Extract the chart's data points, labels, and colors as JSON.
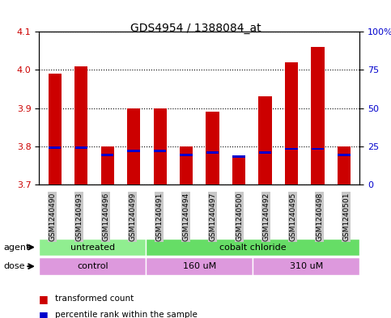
{
  "title": "GDS4954 / 1388084_at",
  "samples": [
    "GSM1240490",
    "GSM1240493",
    "GSM1240496",
    "GSM1240499",
    "GSM1240491",
    "GSM1240494",
    "GSM1240497",
    "GSM1240500",
    "GSM1240492",
    "GSM1240495",
    "GSM1240498",
    "GSM1240501"
  ],
  "bar_bottoms": [
    3.7,
    3.7,
    3.7,
    3.7,
    3.7,
    3.7,
    3.7,
    3.7,
    3.7,
    3.7,
    3.7,
    3.7
  ],
  "bar_tops": [
    3.99,
    4.01,
    3.8,
    3.9,
    3.9,
    3.8,
    3.89,
    3.77,
    3.93,
    4.02,
    4.06,
    3.8
  ],
  "blue_marks": [
    3.793,
    3.793,
    3.775,
    3.785,
    3.785,
    3.775,
    3.78,
    3.77,
    3.78,
    3.79,
    3.79,
    3.775
  ],
  "ylim": [
    3.7,
    4.1
  ],
  "yticks_left": [
    3.7,
    3.8,
    3.9,
    4.0,
    4.1
  ],
  "yticks_right": [
    0,
    25,
    50,
    75,
    100
  ],
  "ylabel_left_color": "#cc0000",
  "ylabel_right_color": "#0000cc",
  "bar_color": "#cc0000",
  "blue_color": "#0000cc",
  "grid_color": "#000000",
  "bg_color": "#ffffff",
  "plot_bg": "#ffffff",
  "agent_groups": [
    {
      "label": "untreated",
      "start": 0,
      "end": 4,
      "color": "#90ee90"
    },
    {
      "label": "cobalt chloride",
      "start": 4,
      "end": 12,
      "color": "#66dd66"
    }
  ],
  "dose_groups": [
    {
      "label": "control",
      "start": 0,
      "end": 4,
      "color": "#dd99dd"
    },
    {
      "label": "160 uM",
      "start": 4,
      "end": 8,
      "color": "#dd99dd"
    },
    {
      "label": "310 uM",
      "start": 8,
      "end": 12,
      "color": "#dd99dd"
    }
  ],
  "legend_items": [
    {
      "color": "#cc0000",
      "label": "transformed count"
    },
    {
      "color": "#0000cc",
      "label": "percentile rank within the sample"
    }
  ],
  "xticklabel_bg": "#c8c8c8"
}
